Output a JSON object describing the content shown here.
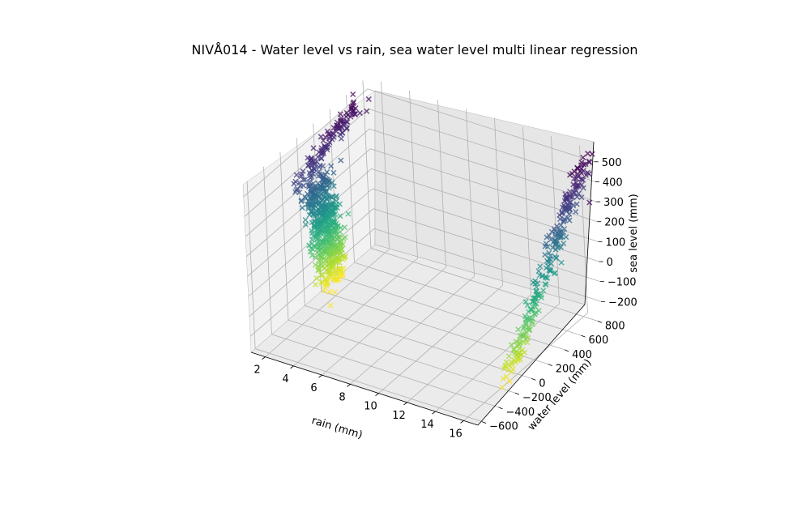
{
  "chart_data": {
    "type": "scatter3d",
    "title": "NIVÅ014 - Water level vs rain, sea water level  multi linear regression",
    "xlabel": "rain (mm)",
    "ylabel": "water level (mm)",
    "zlabel": "sea level (mm)",
    "xlim": [
      1,
      17
    ],
    "ylim": [
      -650,
      850
    ],
    "zlim": [
      -280,
      560
    ],
    "xticks": [
      "2",
      "4",
      "6",
      "8",
      "10",
      "12",
      "14",
      "16"
    ],
    "yticks": [
      "−600",
      "−400",
      "−200",
      "0",
      "200",
      "400",
      "600",
      "800"
    ],
    "zticks": [
      "−200",
      "−100",
      "0",
      "100",
      "200",
      "300",
      "400",
      "500"
    ],
    "marker": "x",
    "colormap": "viridis",
    "grid": true,
    "clusters": [
      {
        "rain": 1.3,
        "water_level": [
          -250,
          780
        ],
        "sea_level": [
          -260,
          520
        ],
        "count": 650
      },
      {
        "rain": 16.7,
        "water_level": [
          -250,
          800
        ],
        "sea_level": [
          -210,
          520
        ],
        "count": 260
      }
    ]
  }
}
